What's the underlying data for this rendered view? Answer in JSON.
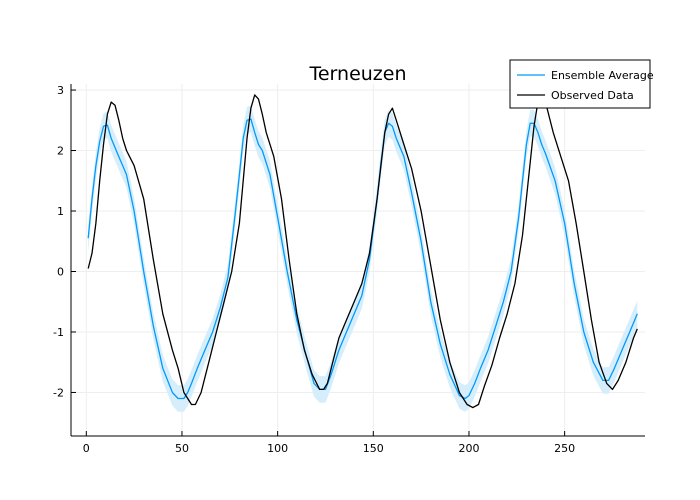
{
  "chart_data": {
    "type": "line",
    "title": "Terneuzen",
    "xlabel": "",
    "ylabel": "",
    "xlim": [
      -8,
      292
    ],
    "ylim": [
      -2.72,
      3.1
    ],
    "xticks": [
      0,
      50,
      100,
      150,
      200,
      250
    ],
    "yticks": [
      -2,
      -1,
      0,
      1,
      2,
      3
    ],
    "grid": true,
    "legend_position": "top-right",
    "colors": {
      "ensemble": "#009AFA",
      "band": "#D6EEFC",
      "observed": "#000000",
      "grid": "#EEEEEE"
    },
    "series": [
      {
        "name": "Ensemble Average",
        "color": "#009AFA",
        "band_half_width": 0.22,
        "x": [
          1,
          3,
          5,
          7,
          9,
          11,
          13,
          15,
          17,
          19,
          21,
          25,
          30,
          35,
          40,
          45,
          48,
          51,
          53,
          55,
          58,
          62,
          66,
          70,
          74,
          78,
          80,
          82,
          84,
          86,
          88,
          90,
          92,
          96,
          100,
          105,
          110,
          115,
          119,
          122,
          125,
          128,
          132,
          136,
          140,
          144,
          148,
          152,
          154,
          156,
          158,
          160,
          162,
          164,
          166,
          170,
          175,
          180,
          185,
          190,
          195,
          198,
          200,
          203,
          206,
          210,
          214,
          218,
          222,
          226,
          228,
          230,
          232,
          234,
          236,
          238,
          240,
          245,
          250,
          255,
          260,
          265,
          270,
          273,
          276,
          280,
          284,
          288
        ],
        "values": [
          0.55,
          1.2,
          1.75,
          2.15,
          2.4,
          2.42,
          2.2,
          2.05,
          1.9,
          1.75,
          1.6,
          1.0,
          0.0,
          -0.9,
          -1.6,
          -2.0,
          -2.1,
          -2.1,
          -2.0,
          -1.85,
          -1.6,
          -1.3,
          -1.0,
          -0.6,
          -0.1,
          1.0,
          1.6,
          2.2,
          2.5,
          2.52,
          2.3,
          2.1,
          2.0,
          1.6,
          0.9,
          0.0,
          -0.8,
          -1.4,
          -1.85,
          -1.95,
          -1.95,
          -1.7,
          -1.3,
          -1.0,
          -0.7,
          -0.4,
          0.2,
          1.2,
          1.8,
          2.3,
          2.45,
          2.4,
          2.2,
          2.05,
          1.9,
          1.3,
          0.5,
          -0.5,
          -1.2,
          -1.7,
          -2.05,
          -2.1,
          -2.05,
          -1.85,
          -1.6,
          -1.3,
          -0.9,
          -0.5,
          0.0,
          0.9,
          1.5,
          2.1,
          2.45,
          2.45,
          2.3,
          2.1,
          1.95,
          1.5,
          0.8,
          -0.2,
          -1.0,
          -1.5,
          -1.8,
          -1.8,
          -1.6,
          -1.3,
          -1.0,
          -0.7
        ]
      },
      {
        "name": "Observed Data",
        "color": "#000000",
        "x": [
          1,
          3,
          5,
          7,
          9,
          11,
          13,
          15,
          17,
          19,
          21,
          25,
          30,
          35,
          40,
          45,
          48,
          51,
          53,
          55,
          57,
          60,
          64,
          68,
          72,
          76,
          80,
          84,
          86,
          88,
          90,
          92,
          94,
          98,
          102,
          106,
          110,
          114,
          118,
          122,
          124,
          126,
          128,
          132,
          136,
          140,
          144,
          148,
          152,
          156,
          158,
          160,
          162,
          164,
          166,
          170,
          175,
          180,
          185,
          190,
          195,
          199,
          202,
          205,
          208,
          212,
          216,
          220,
          224,
          228,
          232,
          234,
          236,
          238,
          240,
          244,
          248,
          252,
          256,
          260,
          264,
          268,
          272,
          275,
          278,
          282,
          286,
          288
        ],
        "values": [
          0.05,
          0.3,
          0.8,
          1.5,
          2.1,
          2.6,
          2.8,
          2.75,
          2.5,
          2.2,
          2.0,
          1.75,
          1.2,
          0.2,
          -0.7,
          -1.3,
          -1.6,
          -2.0,
          -2.1,
          -2.2,
          -2.2,
          -2.0,
          -1.5,
          -1.0,
          -0.5,
          0.0,
          0.8,
          2.2,
          2.7,
          2.92,
          2.85,
          2.6,
          2.3,
          1.9,
          1.2,
          0.2,
          -0.7,
          -1.3,
          -1.7,
          -1.95,
          -1.95,
          -1.85,
          -1.6,
          -1.1,
          -0.8,
          -0.5,
          -0.2,
          0.3,
          1.2,
          2.3,
          2.6,
          2.7,
          2.5,
          2.3,
          2.1,
          1.7,
          1.0,
          0.1,
          -0.8,
          -1.5,
          -2.0,
          -2.2,
          -2.25,
          -2.2,
          -1.9,
          -1.55,
          -1.1,
          -0.7,
          -0.2,
          0.6,
          1.8,
          2.4,
          2.8,
          2.9,
          2.8,
          2.3,
          1.9,
          1.5,
          0.8,
          0.0,
          -0.8,
          -1.5,
          -1.85,
          -1.95,
          -1.8,
          -1.5,
          -1.1,
          -0.95
        ]
      }
    ]
  }
}
